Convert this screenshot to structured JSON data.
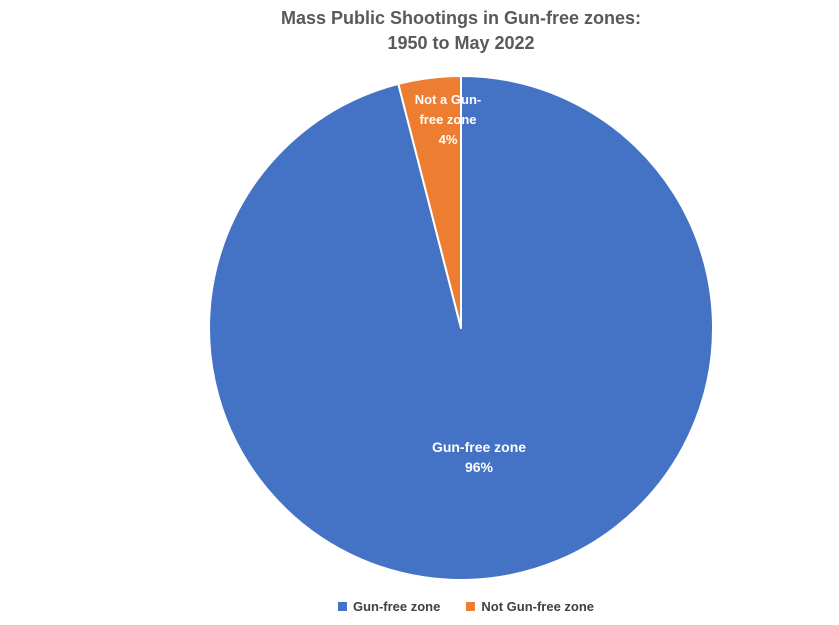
{
  "chart_data": {
    "type": "pie",
    "title": "Mass Public Shootings in Gun-free zones: 1950 to May 2022",
    "title_lines": [
      "Mass Public Shootings in Gun-free zones:",
      "1950 to May 2022"
    ],
    "unit": "%",
    "start_angle_deg": 0,
    "direction": "clockwise",
    "legend_position": "bottom",
    "slices": [
      {
        "label": "Gun-free zone",
        "value": 96,
        "percent_label": "96%",
        "data_label": "Gun-free zone",
        "color": "#4472C4"
      },
      {
        "label": "Not Gun-free zone",
        "value": 4,
        "percent_label": "4%",
        "data_label": "Not a Gun-free zone",
        "color": "#ED7D31"
      }
    ]
  },
  "colors": {
    "title_text": "#595959",
    "legend_text": "#404040",
    "data_label_text": "#FFFFFF",
    "slice_border": "#FFFFFF",
    "background": "#FFFFFF"
  }
}
